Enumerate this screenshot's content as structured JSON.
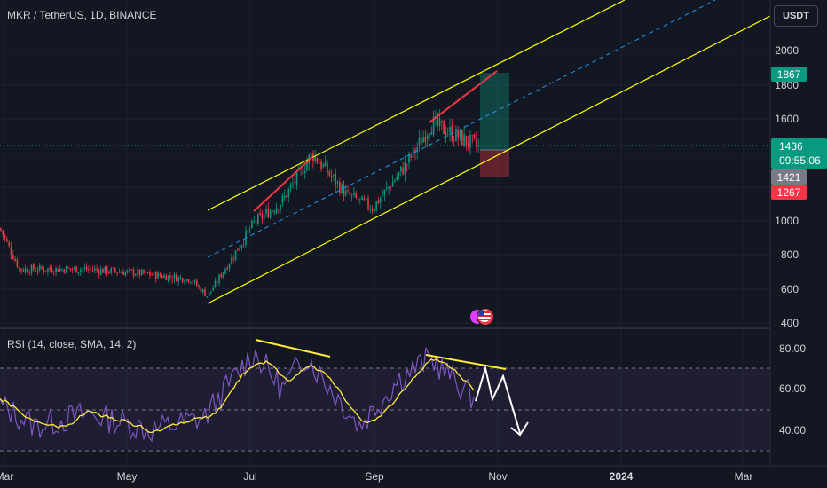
{
  "header": {
    "title": "MKR / TetherUS, 1D, BINANCE"
  },
  "currency_button": {
    "label": "USDT"
  },
  "price_axis": {
    "ticks": [
      "2000",
      "1800",
      "1600",
      "1200",
      "1000",
      "800",
      "600",
      "400"
    ]
  },
  "price_labels": {
    "target": "1867",
    "current_price": "1436",
    "countdown": "09:55:06",
    "entry": "1421",
    "stop": "1267"
  },
  "rsi_panel": {
    "title": "RSI (14, close, SMA, 14, 2)",
    "ticks": [
      "80.00",
      "60.00",
      "40.00"
    ]
  },
  "time_axis": {
    "labels": [
      "Mar",
      "May",
      "Jul",
      "Sep",
      "Nov",
      "2024",
      "Mar"
    ]
  },
  "colors": {
    "background": "#131722",
    "up_candle": "#089981",
    "down_candle": "#f23645",
    "channel": "#ffff00",
    "midline": "#2196f3",
    "trend_red": "#f23645",
    "rsi_line": "#7e57c2",
    "rsi_ma": "#ffeb3b",
    "arrow": "#ffffff"
  },
  "icons": {
    "event_flag": "us-flag-icon"
  },
  "chart_data": {
    "type": "candlestick",
    "title": "MKR / TetherUS, 1D, BINANCE",
    "ylim": [
      380,
      2180
    ],
    "xlabels": [
      "Mar",
      "May",
      "Jul",
      "Sep",
      "Nov",
      "2024",
      "Mar"
    ],
    "price_path": [
      {
        "date": "Feb",
        "close": 960
      },
      {
        "date": "Mar",
        "close": 720
      },
      {
        "date": "Apr",
        "close": 720
      },
      {
        "date": "May",
        "close": 700
      },
      {
        "date": "Jun",
        "close": 660
      },
      {
        "date": "Jun-mid",
        "close": 560
      },
      {
        "date": "Jul",
        "close": 990
      },
      {
        "date": "Jul-mid",
        "close": 1120
      },
      {
        "date": "Aug",
        "close": 1400
      },
      {
        "date": "Aug-mid",
        "close": 1160
      },
      {
        "date": "Sep",
        "close": 1080
      },
      {
        "date": "Sep-mid",
        "close": 1350
      },
      {
        "date": "Oct",
        "close": 1580
      },
      {
        "date": "Oct-mid",
        "close": 1436
      }
    ],
    "position": {
      "target": 1867,
      "entry": 1421,
      "stop": 1267
    },
    "rsi": {
      "ylim": [
        30,
        85
      ],
      "bands": [
        70,
        50,
        30
      ],
      "path": [
        {
          "date": "Feb",
          "value": 52
        },
        {
          "date": "Mar",
          "value": 42
        },
        {
          "date": "Apr",
          "value": 48
        },
        {
          "date": "May",
          "value": 40
        },
        {
          "date": "Jun",
          "value": 46
        },
        {
          "date": "Jul",
          "value": 78
        },
        {
          "date": "Jul-mid",
          "value": 60
        },
        {
          "date": "Aug",
          "value": 76
        },
        {
          "date": "Sep",
          "value": 42
        },
        {
          "date": "Sep-mid",
          "value": 65
        },
        {
          "date": "Oct",
          "value": 75
        },
        {
          "date": "Oct-mid",
          "value": 55
        }
      ]
    }
  }
}
